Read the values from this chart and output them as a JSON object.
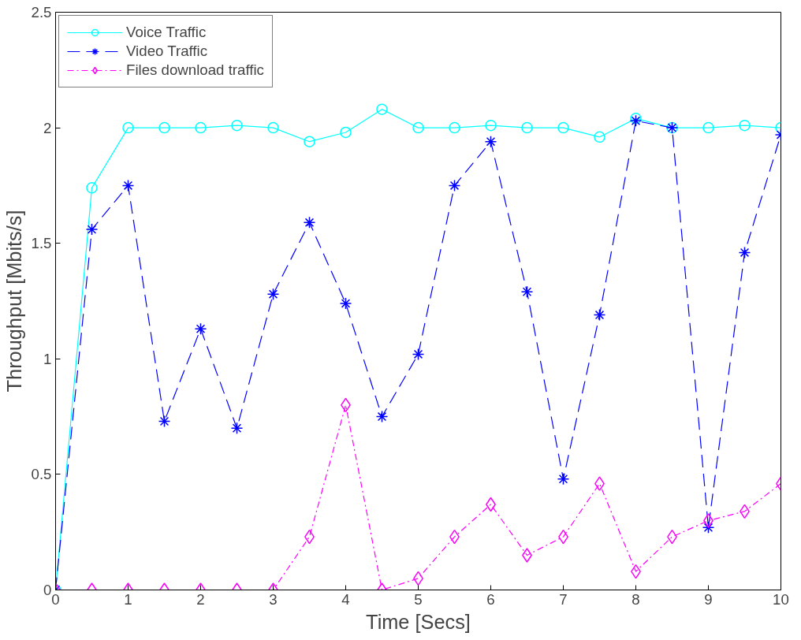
{
  "chart_data": {
    "type": "line",
    "xlabel": "Time [Secs]",
    "ylabel": "Throughput [Mbits/s]",
    "x": [
      0,
      0.5,
      1,
      1.5,
      2,
      2.5,
      3,
      3.5,
      4,
      4.5,
      5,
      5.5,
      6,
      6.5,
      7,
      7.5,
      8,
      8.5,
      9,
      9.5,
      10
    ],
    "xlim": [
      0,
      10
    ],
    "xticks": [
      0,
      1,
      2,
      3,
      4,
      5,
      6,
      7,
      8,
      9,
      10
    ],
    "ylim": [
      0,
      2.5
    ],
    "yticks": [
      0,
      0.5,
      1,
      1.5,
      2,
      2.5
    ],
    "grid": false,
    "legend": "top left",
    "series": [
      {
        "name": "Voice Traffic",
        "color": "#00ffff",
        "marker": "circle",
        "line_style": "solid",
        "values": [
          0,
          1.74,
          2.0,
          2.0,
          2.0,
          2.01,
          2.0,
          1.94,
          1.98,
          2.08,
          2.0,
          2.0,
          2.01,
          2.0,
          2.0,
          1.96,
          2.04,
          2.0,
          2.0,
          2.01,
          2.0
        ]
      },
      {
        "name": "Video Traffic",
        "color": "#0000ff",
        "marker": "cross",
        "line_style": "dashed",
        "values": [
          0,
          1.56,
          1.75,
          0.73,
          1.13,
          0.7,
          1.28,
          1.59,
          1.24,
          0.75,
          1.02,
          1.75,
          1.94,
          1.29,
          0.48,
          1.19,
          2.03,
          2.0,
          0.27,
          1.46,
          1.97
        ]
      },
      {
        "name": "Files download traffic",
        "color": "#ff00ff",
        "marker": "diamond",
        "line_style": "dashdot",
        "values": [
          0,
          0,
          0,
          0,
          0,
          0,
          0,
          0.23,
          0.8,
          0,
          0.05,
          0.23,
          0.37,
          0.15,
          0.23,
          0.46,
          0.08,
          0.23,
          0.3,
          0.34,
          0.46
        ]
      }
    ]
  }
}
